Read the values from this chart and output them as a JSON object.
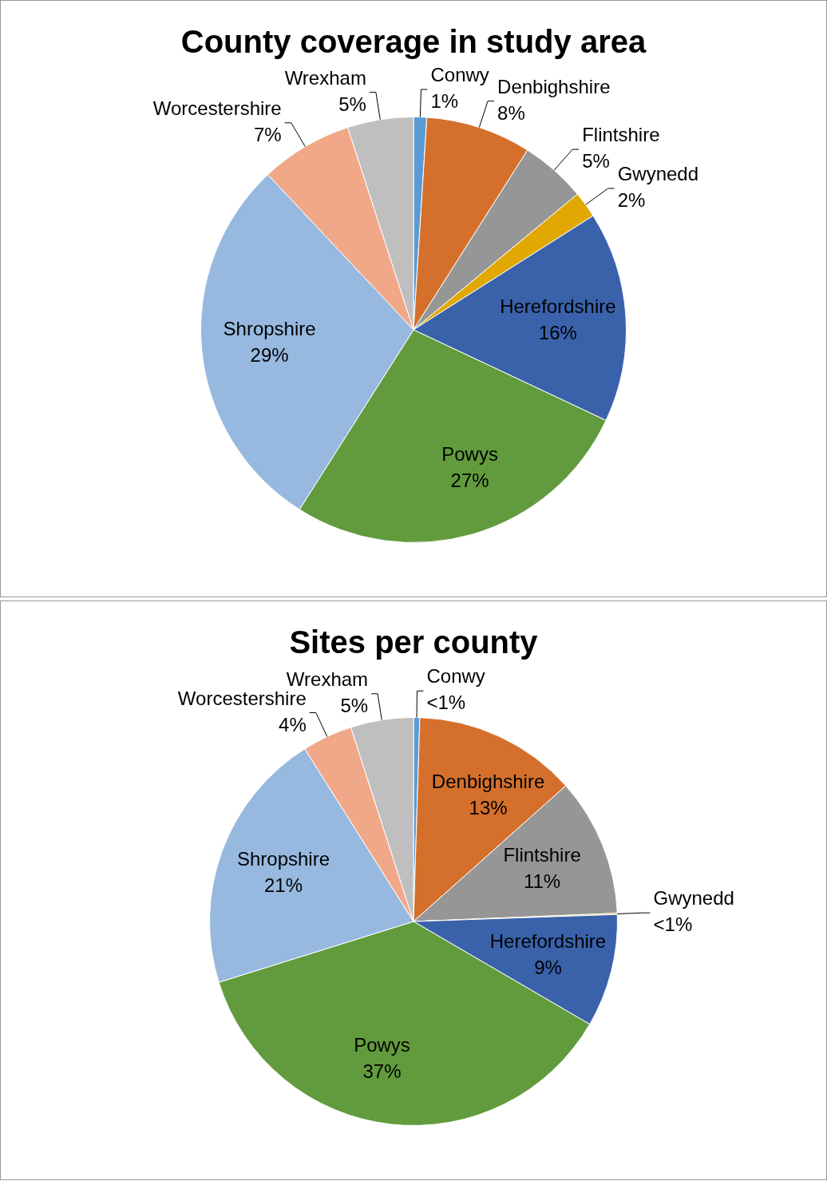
{
  "chart_data": [
    {
      "type": "pie",
      "title": "County coverage in study area",
      "categories": [
        "Conwy",
        "Denbighshire",
        "Flintshire",
        "Gwynedd",
        "Herefordshire",
        "Powys",
        "Shropshire",
        "Worcestershire",
        "Wrexham"
      ],
      "values": [
        1,
        8,
        5,
        2,
        16,
        27,
        29,
        7,
        5
      ],
      "value_labels": [
        "1%",
        "8%",
        "5%",
        "2%",
        "16%",
        "27%",
        "29%",
        "7%",
        "5%"
      ],
      "colors": [
        "#5b9bd5",
        "#d4702b",
        "#969696",
        "#e0a800",
        "#3a62ab",
        "#629b3d",
        "#97b9e0",
        "#f0a888",
        "#bfbfbf"
      ],
      "legend": false
    },
    {
      "type": "pie",
      "title": "Sites per county",
      "categories": [
        "Conwy",
        "Denbighshire",
        "Flintshire",
        "Gwynedd",
        "Herefordshire",
        "Powys",
        "Shropshire",
        "Worcestershire",
        "Wrexham"
      ],
      "values": [
        0.5,
        13,
        11,
        0.1,
        9,
        37,
        21,
        4,
        5
      ],
      "value_labels": [
        "<1%",
        "13%",
        "11%",
        "<1%",
        "9%",
        "37%",
        "21%",
        "4%",
        "5%"
      ],
      "colors": [
        "#5b9bd5",
        "#d4702b",
        "#969696",
        "#e0a800",
        "#3a62ab",
        "#629b3d",
        "#97b9e0",
        "#f0a888",
        "#bfbfbf"
      ],
      "legend": false
    }
  ]
}
